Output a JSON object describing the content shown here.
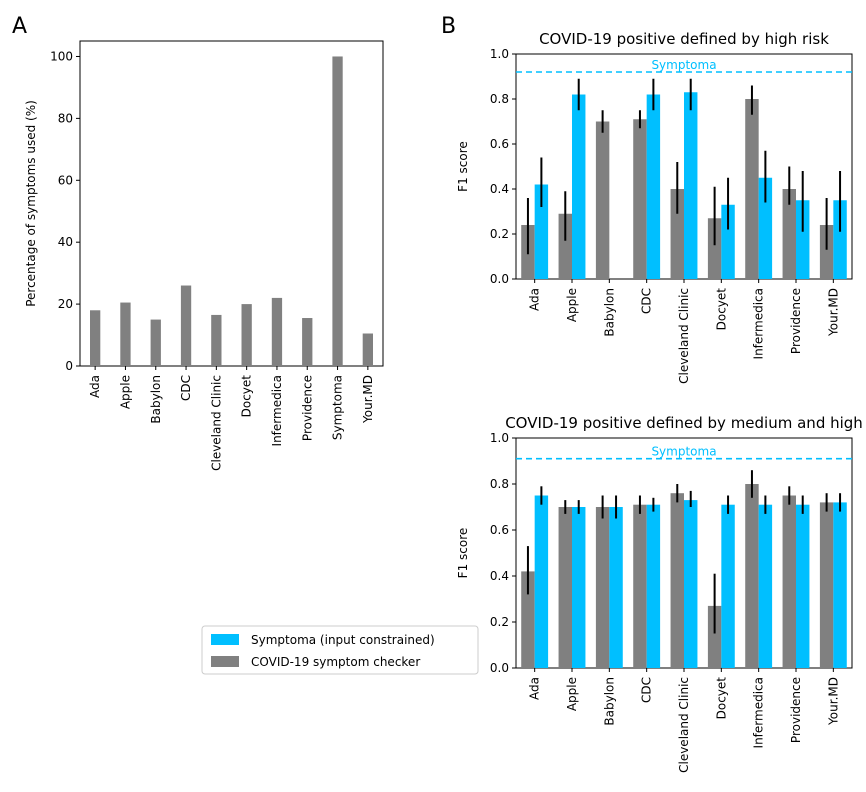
{
  "panel_labels": {
    "a": "A",
    "b": "B"
  },
  "colors": {
    "checker": "#808080",
    "symptoma": "#00bfff",
    "error": "#000000",
    "reference": "#00bfff"
  },
  "legend": {
    "symptoma": "Symptoma (input constrained)",
    "checker": "COVID-19 symptom checker"
  },
  "chart_data": [
    {
      "id": "A",
      "type": "bar",
      "title": "",
      "xlabel": "",
      "ylabel": "Percentage of symptoms used (%)",
      "ylim": [
        0,
        105
      ],
      "yticks": [
        0,
        20,
        40,
        60,
        80,
        100
      ],
      "categories": [
        "Ada",
        "Apple",
        "Babylon",
        "CDC",
        "Cleveland Clinic",
        "Docyet",
        "Infermedica",
        "Providence",
        "Symptoma",
        "Your.MD"
      ],
      "series": [
        {
          "key": "checker",
          "values": [
            18,
            20.5,
            15,
            26,
            16.5,
            20,
            22,
            15.5,
            100,
            10.5
          ]
        }
      ],
      "grid": false
    },
    {
      "id": "B1",
      "type": "bar",
      "title": "COVID-19 positive defined by high risk",
      "xlabel": "",
      "ylabel": "F1 score",
      "ylim": [
        0,
        1.0
      ],
      "yticks": [
        0.0,
        0.2,
        0.4,
        0.6,
        0.8,
        1.0
      ],
      "categories": [
        "Ada",
        "Apple",
        "Babylon",
        "CDC",
        "Cleveland Clinic",
        "Docyet",
        "Infermedica",
        "Providence",
        "Your.MD"
      ],
      "series": [
        {
          "key": "checker",
          "values": [
            0.24,
            0.29,
            0.7,
            0.71,
            0.4,
            0.27,
            0.8,
            0.4,
            0.24
          ],
          "errors": [
            [
              0.11,
              0.36
            ],
            [
              0.17,
              0.39
            ],
            [
              0.65,
              0.75
            ],
            [
              0.67,
              0.75
            ],
            [
              0.29,
              0.52
            ],
            [
              0.15,
              0.41
            ],
            [
              0.73,
              0.86
            ],
            [
              0.33,
              0.5
            ],
            [
              0.13,
              0.36
            ]
          ]
        },
        {
          "key": "symptoma",
          "values": [
            0.42,
            0.82,
            null,
            0.82,
            0.83,
            0.33,
            0.45,
            0.35,
            0.35
          ],
          "errors": [
            [
              0.32,
              0.54
            ],
            [
              0.75,
              0.89
            ],
            null,
            [
              0.75,
              0.89
            ],
            [
              0.75,
              0.89
            ],
            [
              0.22,
              0.45
            ],
            [
              0.34,
              0.57
            ],
            [
              0.21,
              0.48
            ],
            [
              0.21,
              0.48
            ]
          ]
        }
      ],
      "reference_line": {
        "label": "Symptoma",
        "value": 0.92,
        "style": "dashed"
      },
      "grid": false
    },
    {
      "id": "B2",
      "type": "bar",
      "title": "COVID-19 positive defined by medium and high",
      "xlabel": "",
      "ylabel": "F1 score",
      "ylim": [
        0,
        1.0
      ],
      "yticks": [
        0.0,
        0.2,
        0.4,
        0.6,
        0.8,
        1.0
      ],
      "categories": [
        "Ada",
        "Apple",
        "Babylon",
        "CDC",
        "Cleveland Clinic",
        "Docyet",
        "Infermedica",
        "Providence",
        "Your.MD"
      ],
      "series": [
        {
          "key": "checker",
          "values": [
            0.42,
            0.7,
            0.7,
            0.71,
            0.76,
            0.27,
            0.8,
            0.75,
            0.72
          ],
          "errors": [
            [
              0.32,
              0.53
            ],
            [
              0.67,
              0.73
            ],
            [
              0.65,
              0.75
            ],
            [
              0.67,
              0.75
            ],
            [
              0.72,
              0.8
            ],
            [
              0.15,
              0.41
            ],
            [
              0.74,
              0.86
            ],
            [
              0.71,
              0.79
            ],
            [
              0.68,
              0.76
            ]
          ]
        },
        {
          "key": "symptoma",
          "values": [
            0.75,
            0.7,
            0.7,
            0.71,
            0.73,
            0.71,
            0.71,
            0.71,
            0.72
          ],
          "errors": [
            [
              0.71,
              0.79
            ],
            [
              0.67,
              0.73
            ],
            [
              0.65,
              0.75
            ],
            [
              0.68,
              0.74
            ],
            [
              0.7,
              0.77
            ],
            [
              0.67,
              0.75
            ],
            [
              0.67,
              0.75
            ],
            [
              0.67,
              0.75
            ],
            [
              0.68,
              0.76
            ]
          ]
        }
      ],
      "reference_line": {
        "label": "Symptoma",
        "value": 0.91,
        "style": "dashed"
      },
      "grid": false
    }
  ]
}
